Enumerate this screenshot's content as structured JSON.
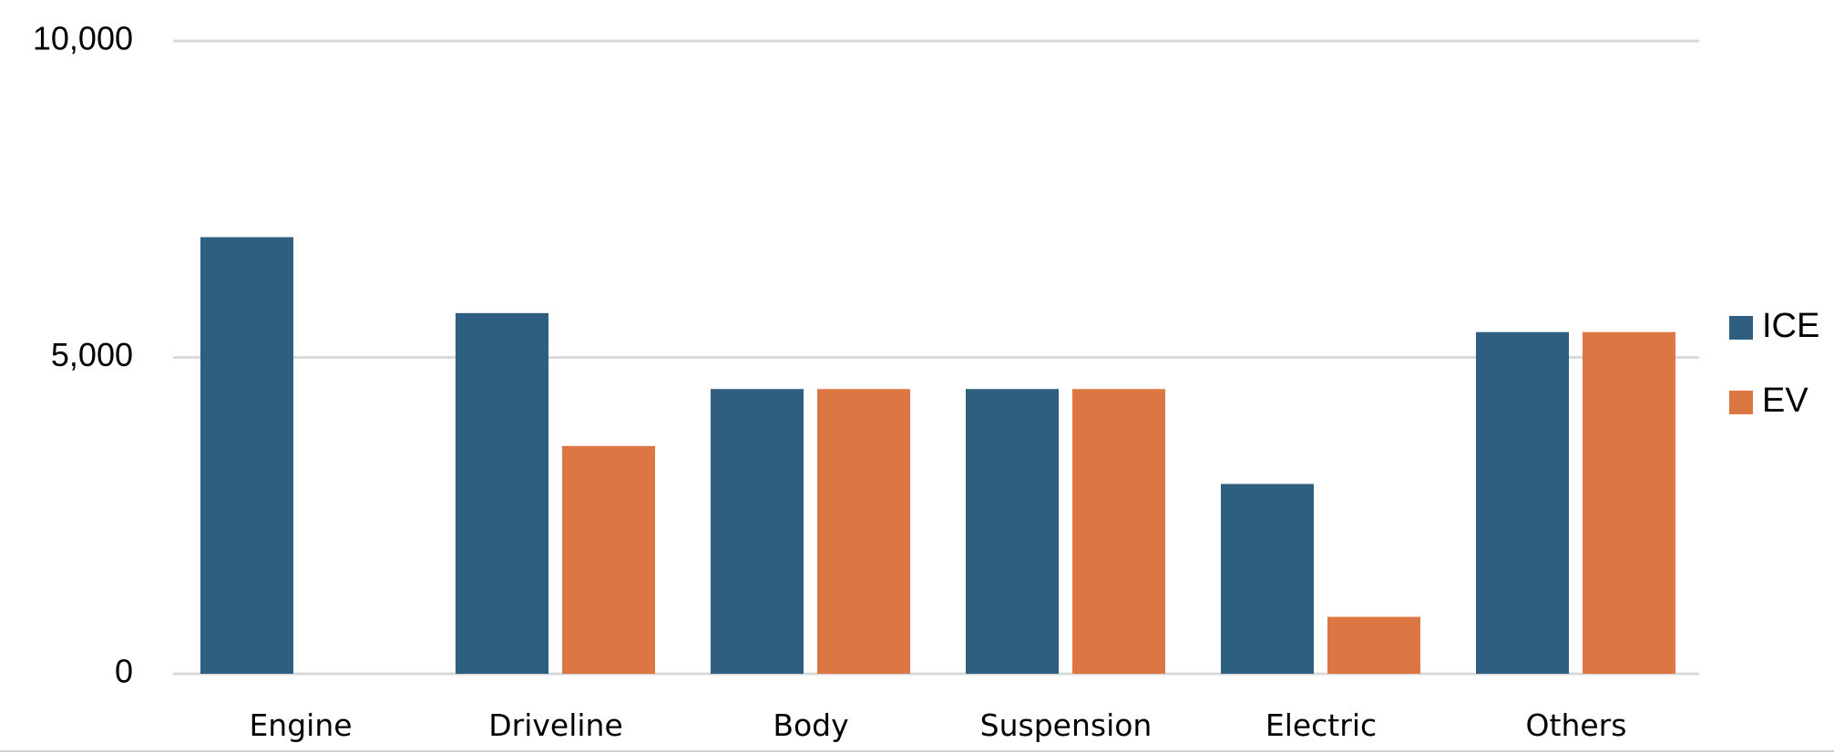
{
  "chart_data": {
    "type": "bar",
    "categories": [
      "Engine",
      "Driveline",
      "Body",
      "Suspension",
      "Electric",
      "Others"
    ],
    "series": [
      {
        "name": "ICE",
        "color": "#2e5f80",
        "values": [
          6900,
          5700,
          4500,
          4500,
          3000,
          5400
        ]
      },
      {
        "name": "EV",
        "color": "#dc7744",
        "values": [
          0,
          3600,
          4500,
          4500,
          900,
          5400
        ]
      }
    ],
    "yticks": [
      {
        "value": 0,
        "label": "0"
      },
      {
        "value": 5000,
        "label": "5,000"
      },
      {
        "value": 10000,
        "label": "10,000"
      }
    ],
    "ylim": [
      0,
      10000
    ],
    "grid": true,
    "legend_position": "right",
    "title": "",
    "xlabel": "",
    "ylabel": ""
  }
}
